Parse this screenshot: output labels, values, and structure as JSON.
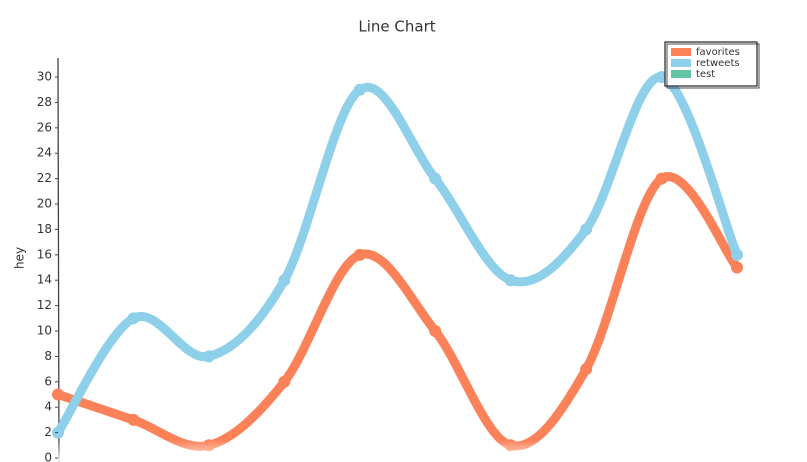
{
  "chart_data": {
    "type": "line",
    "title": "Line Chart",
    "y_label": "hey",
    "x": [
      0,
      1,
      2,
      3,
      4,
      5,
      6,
      7,
      8,
      9
    ],
    "xlim": [
      0,
      9
    ],
    "series": [
      {
        "name": "favorites",
        "color": "#fb8158",
        "values": [
          5,
          3,
          1,
          6,
          16,
          10,
          1,
          7,
          22,
          15
        ]
      },
      {
        "name": "retweets",
        "color": "#8ecfe9",
        "values": [
          2,
          11,
          8,
          14,
          29,
          22,
          14,
          18,
          30,
          16
        ]
      },
      {
        "name": "test",
        "color": "#66c2a5",
        "values": [
          null,
          null,
          null,
          null,
          null,
          null,
          null,
          null,
          null,
          null
        ]
      }
    ],
    "ylim": [
      0,
      31.5
    ],
    "yticks": [
      0,
      2,
      4,
      6,
      8,
      10,
      12,
      14,
      16,
      18,
      20,
      22,
      24,
      26,
      28,
      30
    ],
    "legend": "top-right"
  }
}
